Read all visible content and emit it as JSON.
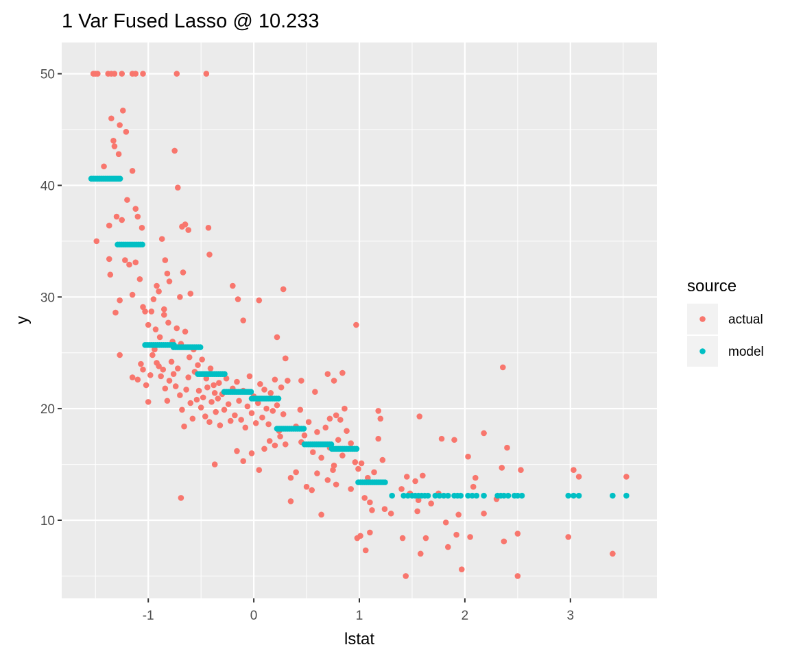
{
  "chart_data": {
    "type": "scatter",
    "title": "1 Var Fused Lasso @ 10.233",
    "xlabel": "lstat",
    "ylabel": "y",
    "xlim": [
      -1.82,
      3.82
    ],
    "ylim": [
      3.0,
      52.8
    ],
    "x_ticks": [
      -1,
      0,
      1,
      2,
      3
    ],
    "x_tick_labels": [
      "-1",
      "0",
      "1",
      "2",
      "3"
    ],
    "y_ticks": [
      10,
      20,
      30,
      40,
      50
    ],
    "y_tick_labels": [
      "10",
      "20",
      "30",
      "40",
      "50"
    ],
    "grid": true,
    "legend": {
      "title": "source",
      "position": "right"
    },
    "colors": {
      "actual": "#F8766D",
      "model": "#00BFC4",
      "panel": "#EBEBEB",
      "grid": "#FFFFFF"
    },
    "series": [
      {
        "name": "actual",
        "color": "#F8766D",
        "points": [
          [
            -1.52,
            50
          ],
          [
            -1.5,
            50
          ],
          [
            -1.48,
            50
          ],
          [
            -1.38,
            50
          ],
          [
            -1.35,
            50
          ],
          [
            -1.32,
            50
          ],
          [
            -1.25,
            50
          ],
          [
            -1.15,
            50
          ],
          [
            -1.12,
            50
          ],
          [
            -1.05,
            50
          ],
          [
            -0.73,
            50
          ],
          [
            -0.45,
            50
          ],
          [
            -1.49,
            35.0
          ],
          [
            -1.42,
            41.7
          ],
          [
            -1.37,
            36.4
          ],
          [
            -1.35,
            46.0
          ],
          [
            -1.33,
            44.0
          ],
          [
            -1.32,
            43.5
          ],
          [
            -1.28,
            42.8
          ],
          [
            -1.27,
            45.4
          ],
          [
            -1.24,
            46.7
          ],
          [
            -1.21,
            44.8
          ],
          [
            -1.15,
            41.3
          ],
          [
            -1.3,
            37.2
          ],
          [
            -1.25,
            36.9
          ],
          [
            -1.2,
            38.7
          ],
          [
            -1.12,
            37.9
          ],
          [
            -1.1,
            37.2
          ],
          [
            -1.06,
            36.2
          ],
          [
            -1.37,
            33.4
          ],
          [
            -1.36,
            32.0
          ],
          [
            -1.31,
            28.6
          ],
          [
            -1.27,
            29.7
          ],
          [
            -1.22,
            33.3
          ],
          [
            -1.18,
            32.9
          ],
          [
            -1.15,
            30.2
          ],
          [
            -1.12,
            33.1
          ],
          [
            -1.08,
            31.6
          ],
          [
            -1.05,
            29.1
          ],
          [
            -1.03,
            28.7
          ],
          [
            -1.27,
            24.8
          ],
          [
            -0.75,
            43.1
          ],
          [
            -0.72,
            39.8
          ],
          [
            -0.68,
            36.3
          ],
          [
            -0.65,
            36.5
          ],
          [
            -0.62,
            36.0
          ],
          [
            -0.87,
            35.2
          ],
          [
            -0.84,
            33.3
          ],
          [
            -0.82,
            32.1
          ],
          [
            -0.8,
            31.4
          ],
          [
            -0.92,
            31.0
          ],
          [
            -0.9,
            30.5
          ],
          [
            -0.95,
            29.8
          ],
          [
            -0.85,
            28.4
          ],
          [
            -0.7,
            30.0
          ],
          [
            -0.6,
            30.3
          ],
          [
            -0.67,
            32.2
          ],
          [
            -0.43,
            36.2
          ],
          [
            -0.42,
            33.8
          ],
          [
            -1.15,
            22.8
          ],
          [
            -1.1,
            22.6
          ],
          [
            -1.07,
            24.0
          ],
          [
            -1.05,
            23.5
          ],
          [
            -1.02,
            22.1
          ],
          [
            -1.0,
            20.6
          ],
          [
            -0.98,
            23.0
          ],
          [
            -0.96,
            24.8
          ],
          [
            -0.94,
            25.3
          ],
          [
            -0.92,
            24.1
          ],
          [
            -0.9,
            23.8
          ],
          [
            -0.88,
            22.9
          ],
          [
            -0.86,
            23.5
          ],
          [
            -0.84,
            21.8
          ],
          [
            -0.82,
            20.7
          ],
          [
            -0.8,
            22.5
          ],
          [
            -0.78,
            24.2
          ],
          [
            -0.76,
            23.1
          ],
          [
            -0.74,
            22.0
          ],
          [
            -0.72,
            23.6
          ],
          [
            -0.7,
            21.2
          ],
          [
            -0.68,
            19.9
          ],
          [
            -0.66,
            18.4
          ],
          [
            -0.64,
            21.7
          ],
          [
            -0.62,
            22.8
          ],
          [
            -0.6,
            20.5
          ],
          [
            -0.58,
            19.1
          ],
          [
            -0.56,
            23.3
          ],
          [
            -0.54,
            20.8
          ],
          [
            -0.52,
            21.6
          ],
          [
            -1.0,
            27.5
          ],
          [
            -0.97,
            28.7
          ],
          [
            -0.93,
            27.1
          ],
          [
            -0.89,
            26.4
          ],
          [
            -0.85,
            28.9
          ],
          [
            -0.81,
            27.7
          ],
          [
            -0.77,
            26.0
          ],
          [
            -0.73,
            27.2
          ],
          [
            -0.69,
            25.8
          ],
          [
            -0.65,
            26.9
          ],
          [
            -0.61,
            24.6
          ],
          [
            -0.57,
            25.3
          ],
          [
            -0.53,
            23.9
          ],
          [
            -0.49,
            24.4
          ],
          [
            -0.45,
            22.7
          ],
          [
            -0.41,
            23.6
          ],
          [
            -0.37,
            21.4
          ],
          [
            -0.33,
            22.3
          ],
          [
            -0.5,
            20.1
          ],
          [
            -0.48,
            21.0
          ],
          [
            -0.46,
            19.3
          ],
          [
            -0.44,
            21.9
          ],
          [
            -0.42,
            18.8
          ],
          [
            -0.4,
            20.6
          ],
          [
            -0.38,
            22.1
          ],
          [
            -0.36,
            19.7
          ],
          [
            -0.34,
            20.9
          ],
          [
            -0.32,
            18.5
          ],
          [
            -0.3,
            21.3
          ],
          [
            -0.28,
            19.9
          ],
          [
            -0.26,
            22.7
          ],
          [
            -0.24,
            20.4
          ],
          [
            -0.22,
            18.9
          ],
          [
            -0.2,
            21.8
          ],
          [
            -0.18,
            19.4
          ],
          [
            -0.16,
            22.4
          ],
          [
            -0.14,
            20.7
          ],
          [
            -0.12,
            19.0
          ],
          [
            -0.1,
            21.6
          ],
          [
            -0.08,
            18.3
          ],
          [
            -0.06,
            20.2
          ],
          [
            -0.04,
            22.9
          ],
          [
            -0.02,
            19.6
          ],
          [
            0.0,
            21.1
          ],
          [
            0.02,
            18.7
          ],
          [
            0.04,
            20.5
          ],
          [
            0.06,
            22.2
          ],
          [
            0.08,
            19.2
          ],
          [
            0.1,
            21.7
          ],
          [
            0.12,
            20.0
          ],
          [
            0.14,
            18.6
          ],
          [
            0.16,
            21.4
          ],
          [
            0.18,
            19.8
          ],
          [
            0.2,
            22.6
          ],
          [
            0.22,
            20.3
          ],
          [
            0.24,
            18.0
          ],
          [
            0.26,
            21.9
          ],
          [
            0.28,
            19.5
          ],
          [
            0.3,
            24.5
          ],
          [
            0.32,
            22.5
          ],
          [
            0.22,
            26.4
          ],
          [
            -0.1,
            27.9
          ],
          [
            -0.2,
            31.0
          ],
          [
            -0.15,
            29.8
          ],
          [
            0.05,
            29.7
          ],
          [
            0.28,
            30.7
          ],
          [
            0.3,
            24.5
          ],
          [
            -0.69,
            12.0
          ],
          [
            -0.37,
            15.0
          ],
          [
            -0.16,
            16.2
          ],
          [
            -0.1,
            15.3
          ],
          [
            -0.02,
            16.0
          ],
          [
            0.05,
            14.5
          ],
          [
            0.1,
            16.4
          ],
          [
            0.15,
            17.1
          ],
          [
            0.2,
            16.7
          ],
          [
            0.25,
            17.5
          ],
          [
            0.3,
            16.8
          ],
          [
            0.35,
            13.8
          ],
          [
            0.4,
            14.3
          ],
          [
            0.45,
            17.0
          ],
          [
            0.35,
            11.7
          ],
          [
            0.4,
            18.4
          ],
          [
            0.44,
            19.9
          ],
          [
            0.48,
            17.6
          ],
          [
            0.52,
            18.8
          ],
          [
            0.56,
            16.1
          ],
          [
            0.6,
            17.9
          ],
          [
            0.64,
            15.6
          ],
          [
            0.68,
            18.3
          ],
          [
            0.72,
            16.5
          ],
          [
            0.76,
            14.9
          ],
          [
            0.8,
            17.2
          ],
          [
            0.84,
            15.8
          ],
          [
            0.88,
            18.0
          ],
          [
            0.92,
            16.9
          ],
          [
            0.96,
            15.2
          ],
          [
            0.5,
            13.0
          ],
          [
            0.55,
            12.7
          ],
          [
            0.6,
            14.2
          ],
          [
            0.64,
            10.5
          ],
          [
            0.7,
            13.6
          ],
          [
            0.75,
            14.5
          ],
          [
            0.78,
            13.2
          ],
          [
            0.72,
            19.1
          ],
          [
            0.76,
            22.5
          ],
          [
            0.7,
            23.1
          ],
          [
            0.45,
            22.5
          ],
          [
            0.58,
            21.5
          ],
          [
            0.84,
            23.2
          ],
          [
            0.78,
            19.4
          ],
          [
            0.86,
            20.0
          ],
          [
            0.82,
            19.0
          ],
          [
            0.97,
            27.5
          ],
          [
            0.99,
            14.6
          ],
          [
            1.02,
            15.1
          ],
          [
            1.05,
            12.0
          ],
          [
            1.08,
            13.8
          ],
          [
            1.1,
            11.6
          ],
          [
            1.14,
            14.3
          ],
          [
            1.18,
            17.3
          ],
          [
            1.22,
            15.4
          ],
          [
            1.18,
            19.8
          ],
          [
            1.2,
            19.1
          ],
          [
            1.12,
            10.9
          ],
          [
            1.24,
            11.0
          ],
          [
            1.3,
            10.6
          ],
          [
            0.98,
            8.4
          ],
          [
            1.01,
            8.6
          ],
          [
            1.06,
            7.3
          ],
          [
            1.1,
            8.9
          ],
          [
            0.92,
            12.8
          ],
          [
            1.4,
            12.8
          ],
          [
            1.45,
            13.9
          ],
          [
            1.48,
            12.4
          ],
          [
            1.53,
            13.5
          ],
          [
            1.56,
            11.8
          ],
          [
            1.6,
            14.0
          ],
          [
            1.55,
            10.8
          ],
          [
            1.57,
            19.3
          ],
          [
            1.41,
            8.4
          ],
          [
            1.44,
            5.0
          ],
          [
            1.58,
            7.0
          ],
          [
            1.63,
            8.4
          ],
          [
            1.68,
            11.5
          ],
          [
            1.75,
            12.4
          ],
          [
            1.78,
            17.3
          ],
          [
            1.82,
            9.8
          ],
          [
            1.84,
            7.6
          ],
          [
            1.9,
            17.2
          ],
          [
            1.92,
            8.7
          ],
          [
            1.94,
            10.5
          ],
          [
            1.97,
            5.6
          ],
          [
            2.03,
            15.7
          ],
          [
            2.05,
            8.5
          ],
          [
            2.08,
            13.0
          ],
          [
            2.1,
            13.8
          ],
          [
            2.18,
            17.8
          ],
          [
            2.18,
            10.6
          ],
          [
            2.35,
            14.7
          ],
          [
            2.36,
            23.7
          ],
          [
            2.37,
            8.1
          ],
          [
            2.3,
            11.9
          ],
          [
            2.4,
            16.5
          ],
          [
            2.5,
            8.8
          ],
          [
            2.5,
            5.0
          ],
          [
            2.53,
            14.5
          ],
          [
            2.98,
            8.5
          ],
          [
            3.03,
            14.5
          ],
          [
            3.08,
            13.9
          ],
          [
            3.4,
            7.0
          ],
          [
            3.53,
            13.9
          ]
        ]
      },
      {
        "name": "model",
        "color": "#00BFC4",
        "segments": [
          {
            "x_start": -1.54,
            "x_end": -1.26,
            "y": 40.6
          },
          {
            "x_start": -1.29,
            "x_end": -1.04,
            "y": 34.7
          },
          {
            "x_start": -1.03,
            "x_end": -0.75,
            "y": 25.7
          },
          {
            "x_start": -0.76,
            "x_end": -0.5,
            "y": 25.5
          },
          {
            "x_start": -0.53,
            "x_end": -0.27,
            "y": 23.1
          },
          {
            "x_start": -0.28,
            "x_end": -0.02,
            "y": 21.5
          },
          {
            "x_start": -0.02,
            "x_end": 0.24,
            "y": 20.9
          },
          {
            "x_start": 0.22,
            "x_end": 0.49,
            "y": 18.2
          },
          {
            "x_start": 0.48,
            "x_end": 0.74,
            "y": 16.8
          },
          {
            "x_start": 0.74,
            "x_end": 0.99,
            "y": 16.4
          },
          {
            "x_start": 0.99,
            "x_end": 1.25,
            "y": 13.4
          }
        ],
        "points": [
          [
            1.31,
            12.2
          ],
          [
            1.42,
            12.2
          ],
          [
            1.46,
            12.2
          ],
          [
            1.5,
            12.2
          ],
          [
            1.53,
            12.2
          ],
          [
            1.56,
            12.2
          ],
          [
            1.59,
            12.2
          ],
          [
            1.62,
            12.2
          ],
          [
            1.65,
            12.2
          ],
          [
            1.72,
            12.2
          ],
          [
            1.76,
            12.2
          ],
          [
            1.8,
            12.2
          ],
          [
            1.84,
            12.2
          ],
          [
            1.9,
            12.2
          ],
          [
            1.93,
            12.2
          ],
          [
            1.96,
            12.2
          ],
          [
            2.03,
            12.2
          ],
          [
            2.07,
            12.2
          ],
          [
            2.11,
            12.2
          ],
          [
            2.18,
            12.2
          ],
          [
            2.31,
            12.2
          ],
          [
            2.34,
            12.2
          ],
          [
            2.37,
            12.2
          ],
          [
            2.41,
            12.2
          ],
          [
            2.47,
            12.2
          ],
          [
            2.5,
            12.2
          ],
          [
            2.54,
            12.2
          ],
          [
            2.98,
            12.2
          ],
          [
            3.03,
            12.2
          ],
          [
            3.08,
            12.2
          ],
          [
            3.4,
            12.2
          ],
          [
            3.53,
            12.2
          ]
        ]
      }
    ]
  }
}
